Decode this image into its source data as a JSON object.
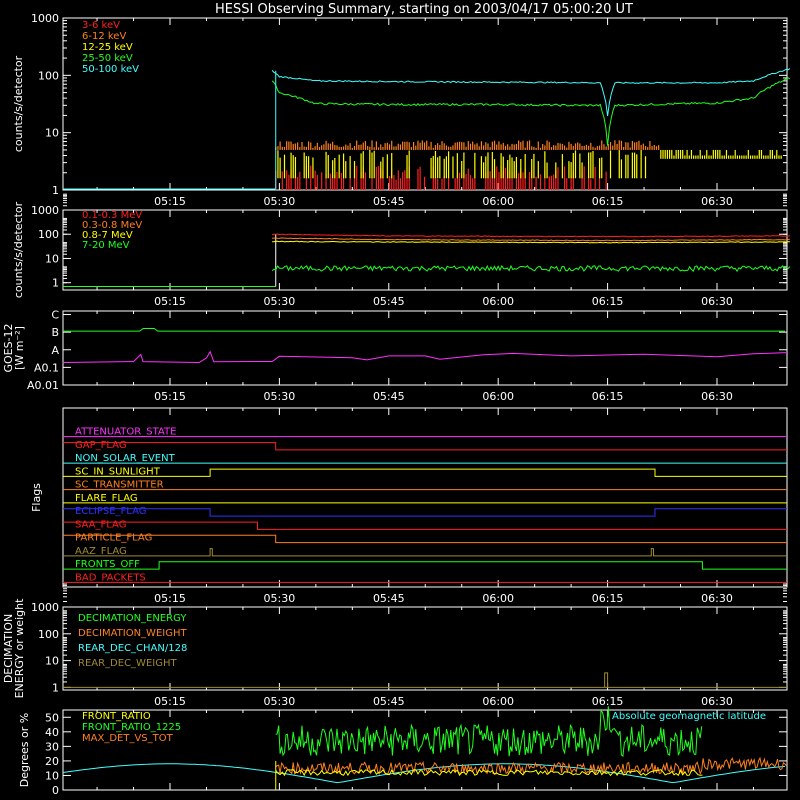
{
  "title": "HESSI Observing Summary, starting on 2003/04/17 05:00:20 UT",
  "x_ticks": [
    "05:15",
    "05:30",
    "05:45",
    "06:00",
    "06:15",
    "06:30"
  ],
  "colors": {
    "bg": "#000000",
    "axis": "#ffffff",
    "red": "#ff2020",
    "orange": "#ff8020",
    "yellow": "#ffff00",
    "green": "#20ff20",
    "cyan": "#40ffff",
    "magenta": "#ff30ff",
    "blue": "#3030ff",
    "olive": "#a08a30",
    "white": "#ffffff"
  },
  "chart_data": [
    {
      "type": "line",
      "id": "hxr",
      "ylabel": "counts/s/detector",
      "yticks": [
        "1",
        "10",
        "100",
        "1000"
      ],
      "legend": [
        {
          "name": "3-6 keV",
          "color": "#ff2020"
        },
        {
          "name": "6-12 keV",
          "color": "#ff8020"
        },
        {
          "name": "12-25 keV",
          "color": "#ffff00"
        },
        {
          "name": "25-50 keV",
          "color": "#20ff20"
        },
        {
          "name": "50-100 keV",
          "color": "#40ffff"
        }
      ],
      "series": [
        {
          "name": "50-100 keV",
          "color": "#40ffff",
          "x": [
            "05:29",
            "05:30",
            "05:35",
            "05:45",
            "06:00",
            "06:10",
            "06:14",
            "06:15",
            "06:16",
            "06:30",
            "06:35",
            "06:40"
          ],
          "y": [
            120,
            95,
            80,
            78,
            76,
            75,
            74,
            20,
            74,
            74,
            80,
            130
          ]
        },
        {
          "name": "25-50 keV",
          "color": "#20ff20",
          "x": [
            "05:29",
            "05:30",
            "05:35",
            "05:45",
            "06:00",
            "06:10",
            "06:14",
            "06:15",
            "06:16",
            "06:30",
            "06:35",
            "06:40"
          ],
          "y": [
            80,
            50,
            32,
            31,
            31,
            30,
            30,
            6,
            30,
            33,
            40,
            90
          ]
        },
        {
          "name": "12-25 keV",
          "color": "#ffff00",
          "x": [
            "05:29",
            "06:22"
          ],
          "y": [
            3,
            3
          ]
        },
        {
          "name": "6-12 keV",
          "color": "#ff8020",
          "x": [
            "05:29",
            "06:22"
          ],
          "y": [
            6,
            6
          ]
        },
        {
          "name": "3-6 keV",
          "color": "#ff2020",
          "x": [
            "05:29",
            "06:22"
          ],
          "y": [
            1.5,
            1.5
          ]
        }
      ]
    },
    {
      "type": "line",
      "id": "gamma",
      "ylabel": "counts/s/detector",
      "yticks": [
        "1",
        "10",
        "100",
        "1000"
      ],
      "legend": [
        {
          "name": "0.1-0.3 MeV",
          "color": "#ff2020"
        },
        {
          "name": "0.3-0.8 MeV",
          "color": "#ff8020"
        },
        {
          "name": "0.8-7 MeV",
          "color": "#ffff00"
        },
        {
          "name": "7-20 MeV",
          "color": "#20ff20"
        }
      ],
      "series": [
        {
          "name": "0.1-0.3 MeV",
          "color": "#ff2020",
          "x": [
            "05:29",
            "05:45",
            "06:15",
            "06:40"
          ],
          "y": [
            100,
            85,
            80,
            85
          ]
        },
        {
          "name": "0.3-0.8 MeV",
          "color": "#ff8020",
          "x": [
            "05:29",
            "05:45",
            "06:15",
            "06:40"
          ],
          "y": [
            70,
            60,
            55,
            60
          ]
        },
        {
          "name": "0.8-7 MeV",
          "color": "#ffff00",
          "x": [
            "05:29",
            "05:45",
            "06:15",
            "06:40"
          ],
          "y": [
            50,
            48,
            45,
            48
          ]
        },
        {
          "name": "7-20 MeV",
          "color": "#20ff20",
          "x": [
            "05:29",
            "05:45",
            "06:15",
            "06:40"
          ],
          "y": [
            4,
            4,
            4,
            4
          ]
        }
      ]
    },
    {
      "type": "line",
      "id": "goes",
      "ylabel": "GOES-12",
      "ylabel2": "[W m⁻²]",
      "yticks": [
        "A0.01",
        "A0.1",
        "A",
        "B",
        "C"
      ]
    },
    {
      "type": "table",
      "id": "flags",
      "ylabel": "Flags",
      "flags": [
        {
          "name": "ATTENUATOR_STATE",
          "color": "#ff30ff"
        },
        {
          "name": "GAP_FLAG",
          "color": "#ff2020"
        },
        {
          "name": "NON_SOLAR_EVENT",
          "color": "#40ffff"
        },
        {
          "name": "SC_IN_SUNLIGHT",
          "color": "#ffff00"
        },
        {
          "name": "SC_TRANSMITTER",
          "color": "#ff8020"
        },
        {
          "name": "FLARE_FLAG",
          "color": "#ffff00"
        },
        {
          "name": "ECLIPSE_FLAG",
          "color": "#3030ff"
        },
        {
          "name": "SAA_FLAG",
          "color": "#ff2020"
        },
        {
          "name": "PARTICLE_FLAG",
          "color": "#ff8020"
        },
        {
          "name": "AAZ_FLAG",
          "color": "#a08a30"
        },
        {
          "name": "FRONTS_OFF",
          "color": "#20ff20"
        },
        {
          "name": "BAD_PACKETS",
          "color": "#ff2020"
        }
      ]
    },
    {
      "type": "line",
      "id": "decimation",
      "ylabel": "DECIMATION",
      "ylabel2": "ENERGY or weight",
      "yticks": [
        "1",
        "10",
        "100",
        "1000"
      ],
      "legend": [
        {
          "name": "DECIMATION_ENERGY",
          "color": "#20ff20"
        },
        {
          "name": "DECIMATION_WEIGHT",
          "color": "#ff8020"
        },
        {
          "name": "REAR_DEC_CHAN/128",
          "color": "#40ffff"
        },
        {
          "name": "REAR_DEC_WEIGHT",
          "color": "#a08a30"
        }
      ]
    },
    {
      "type": "line",
      "id": "ratio",
      "ylabel": "Degrees or %",
      "yticks": [
        "0",
        "10",
        "20",
        "30",
        "40",
        "50"
      ],
      "legend": [
        {
          "name": "FRONT_RATIO",
          "color": "#ffff00"
        },
        {
          "name": "FRONT_RATIO_1225",
          "color": "#20ff20"
        },
        {
          "name": "MAX_DET_VS_TOT",
          "color": "#ff8020"
        }
      ],
      "annotation": "Absolute geomagnetic latitude"
    }
  ]
}
